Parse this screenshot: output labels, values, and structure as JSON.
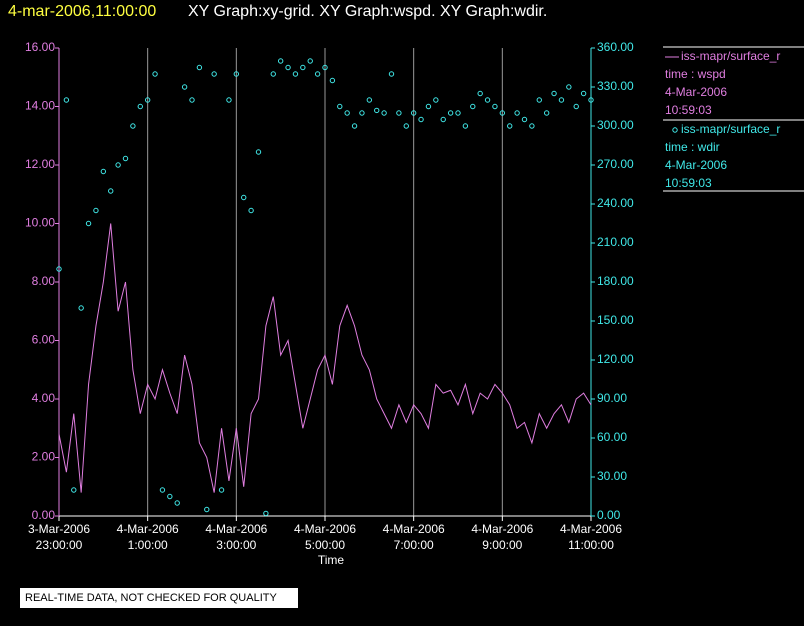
{
  "chart_data": {
    "type": "xy",
    "title_time": "4-mar-2006,11:00:00",
    "title": "XY Graph:xy-grid.  XY Graph:wspd.  XY Graph:wdir.",
    "xlabel": "Time",
    "footer": "REAL-TIME DATA, NOT CHECKED FOR QUALITY",
    "x": [
      "2006-03-03T23:00:00",
      "2006-03-03T23:10:00",
      "2006-03-03T23:20:00",
      "2006-03-03T23:30:00",
      "2006-03-03T23:40:00",
      "2006-03-03T23:50:00",
      "2006-03-04T00:00:00",
      "2006-03-04T00:10:00",
      "2006-03-04T00:20:00",
      "2006-03-04T00:30:00",
      "2006-03-04T00:40:00",
      "2006-03-04T00:50:00",
      "2006-03-04T01:00:00",
      "2006-03-04T01:10:00",
      "2006-03-04T01:20:00",
      "2006-03-04T01:30:00",
      "2006-03-04T01:40:00",
      "2006-03-04T01:50:00",
      "2006-03-04T02:00:00",
      "2006-03-04T02:10:00",
      "2006-03-04T02:20:00",
      "2006-03-04T02:30:00",
      "2006-03-04T02:40:00",
      "2006-03-04T02:50:00",
      "2006-03-04T03:00:00",
      "2006-03-04T03:10:00",
      "2006-03-04T03:20:00",
      "2006-03-04T03:30:00",
      "2006-03-04T03:40:00",
      "2006-03-04T03:50:00",
      "2006-03-04T04:00:00",
      "2006-03-04T04:10:00",
      "2006-03-04T04:20:00",
      "2006-03-04T04:30:00",
      "2006-03-04T04:40:00",
      "2006-03-04T04:50:00",
      "2006-03-04T05:00:00",
      "2006-03-04T05:10:00",
      "2006-03-04T05:20:00",
      "2006-03-04T05:30:00",
      "2006-03-04T05:40:00",
      "2006-03-04T05:50:00",
      "2006-03-04T06:00:00",
      "2006-03-04T06:10:00",
      "2006-03-04T06:20:00",
      "2006-03-04T06:30:00",
      "2006-03-04T06:40:00",
      "2006-03-04T06:50:00",
      "2006-03-04T07:00:00",
      "2006-03-04T07:10:00",
      "2006-03-04T07:20:00",
      "2006-03-04T07:30:00",
      "2006-03-04T07:40:00",
      "2006-03-04T07:50:00",
      "2006-03-04T08:00:00",
      "2006-03-04T08:10:00",
      "2006-03-04T08:20:00",
      "2006-03-04T08:30:00",
      "2006-03-04T08:40:00",
      "2006-03-04T08:50:00",
      "2006-03-04T09:00:00",
      "2006-03-04T09:10:00",
      "2006-03-04T09:20:00",
      "2006-03-04T09:30:00",
      "2006-03-04T09:40:00",
      "2006-03-04T09:50:00",
      "2006-03-04T10:00:00",
      "2006-03-04T10:10:00",
      "2006-03-04T10:20:00",
      "2006-03-04T10:30:00",
      "2006-03-04T10:40:00",
      "2006-03-04T10:50:00",
      "2006-03-04T11:00:00"
    ],
    "series": [
      {
        "name": "iss-mapr/surface_r",
        "kind": "line",
        "color": "#e07ee0",
        "axis": "y",
        "time_label": "time : wspd",
        "date": "4-Mar-2006",
        "time": "10:59:03",
        "values": [
          2.8,
          1.5,
          3.5,
          0.8,
          4.5,
          6.5,
          8,
          10,
          7,
          8,
          5,
          3.5,
          4.5,
          4,
          5,
          4.2,
          3.5,
          5.5,
          4.5,
          2.5,
          2,
          0.8,
          3,
          1.2,
          3,
          1,
          3.5,
          4,
          6.5,
          7.5,
          5.5,
          6,
          4.5,
          3,
          4,
          5,
          5.5,
          4.5,
          6.5,
          7.2,
          6.5,
          5.5,
          5,
          4,
          3.5,
          3,
          3.8,
          3.2,
          3.8,
          3.5,
          3,
          4.5,
          4.2,
          4.3,
          3.8,
          4.5,
          3.5,
          4.2,
          4,
          4.5,
          4.2,
          3.8,
          3,
          3.2,
          2.5,
          3.5,
          3,
          3.5,
          3.8,
          3.2,
          4,
          4.2,
          3.8
        ]
      },
      {
        "name": "iss-mapr/surface_r",
        "kind": "scatter",
        "color": "#40e8e8",
        "axis": "y2",
        "time_label": "time : wdir",
        "date": "4-Mar-2006",
        "time": "10:59:03",
        "values": [
          190,
          320,
          20,
          160,
          225,
          235,
          265,
          250,
          270,
          275,
          300,
          315,
          320,
          340,
          20,
          15,
          10,
          330,
          320,
          345,
          5,
          340,
          20,
          320,
          340,
          245,
          235,
          280,
          2,
          340,
          350,
          345,
          340,
          345,
          350,
          340,
          345,
          335,
          315,
          310,
          300,
          310,
          320,
          312,
          310,
          340,
          310,
          300,
          310,
          305,
          315,
          320,
          305,
          310,
          310,
          300,
          315,
          325,
          320,
          315,
          310,
          300,
          310,
          305,
          300,
          320,
          310,
          325,
          320,
          330,
          315,
          325,
          320
        ]
      }
    ],
    "xlim": [
      "2006-03-03T23:00:00",
      "2006-03-04T11:00:00"
    ],
    "xticks": [
      {
        "value": "2006-03-03T23:00:00",
        "label": [
          "3-Mar-2006",
          "23:00:00"
        ]
      },
      {
        "value": "2006-03-04T01:00:00",
        "label": [
          "4-Mar-2006",
          "1:00:00"
        ]
      },
      {
        "value": "2006-03-04T03:00:00",
        "label": [
          "4-Mar-2006",
          "3:00:00"
        ]
      },
      {
        "value": "2006-03-04T05:00:00",
        "label": [
          "4-Mar-2006",
          "5:00:00"
        ]
      },
      {
        "value": "2006-03-04T07:00:00",
        "label": [
          "4-Mar-2006",
          "7:00:00"
        ]
      },
      {
        "value": "2006-03-04T09:00:00",
        "label": [
          "4-Mar-2006",
          "9:00:00"
        ]
      },
      {
        "value": "2006-03-04T11:00:00",
        "label": [
          "4-Mar-2006",
          "11:00:00"
        ]
      }
    ],
    "ylim": [
      0,
      16
    ],
    "yticks": [
      {
        "value": 0,
        "label": "0.00"
      },
      {
        "value": 2,
        "label": "2.00"
      },
      {
        "value": 4,
        "label": "4.00"
      },
      {
        "value": 6,
        "label": "6.00"
      },
      {
        "value": 8,
        "label": "8.00"
      },
      {
        "value": 10,
        "label": "10.00"
      },
      {
        "value": 12,
        "label": "12.00"
      },
      {
        "value": 14,
        "label": "14.00"
      },
      {
        "value": 16,
        "label": "16.00"
      }
    ],
    "y2lim": [
      0,
      360
    ],
    "y2ticks": [
      {
        "value": 0,
        "label": "0.00"
      },
      {
        "value": 30,
        "label": "30.00"
      },
      {
        "value": 60,
        "label": "60.00"
      },
      {
        "value": 90,
        "label": "90.00"
      },
      {
        "value": 120,
        "label": "120.00"
      },
      {
        "value": 150,
        "label": "150.00"
      },
      {
        "value": 180,
        "label": "180.00"
      },
      {
        "value": 210,
        "label": "210.00"
      },
      {
        "value": 240,
        "label": "240.00"
      },
      {
        "value": 270,
        "label": "270.00"
      },
      {
        "value": 300,
        "label": "300.00"
      },
      {
        "value": 330,
        "label": "330.00"
      },
      {
        "value": 360,
        "label": "360.00"
      }
    ],
    "grid": "x"
  }
}
